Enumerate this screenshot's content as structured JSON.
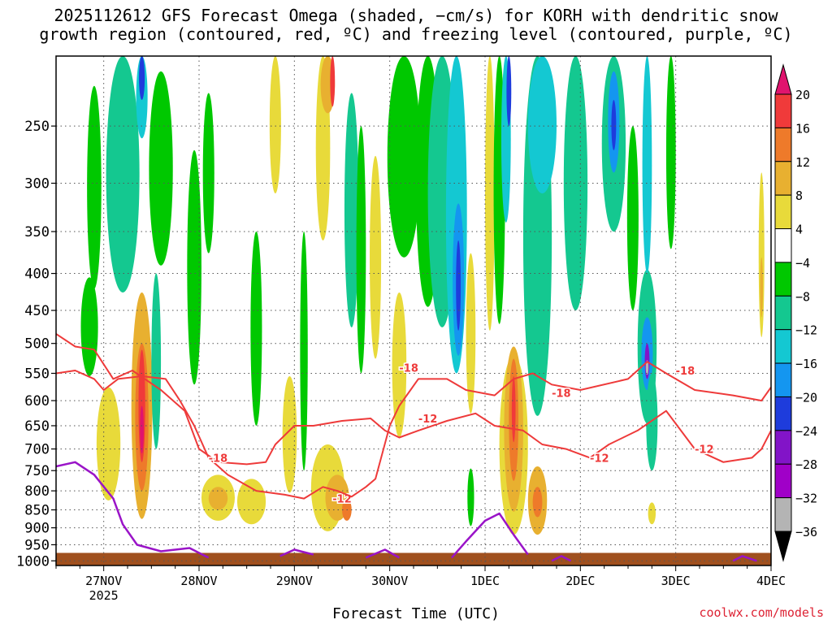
{
  "title_line1": "2025112612 GFS Forecast Omega (shaded, −cm/s) for KORH with dendritic snow",
  "title_line2": "growth region (contoured, red, ºC) and freezing level (contoured, purple, ºC)",
  "xlabel": "Forecast Time (UTC)",
  "credit": "coolwx.com/models",
  "chart_data": {
    "type": "heatmap",
    "title": "2025112612 GFS Forecast Omega (shaded, −cm/s) for KORH with dendritic snow growth region (contoured, red, ºC) and freezing level (contoured, purple, ºC)",
    "xlabel": "Forecast Time (UTC)",
    "ylabel": "",
    "x_ticks": [
      {
        "label": "27NOV",
        "sub": "2025",
        "day": 1
      },
      {
        "label": "28NOV",
        "day": 2
      },
      {
        "label": "29NOV",
        "day": 3
      },
      {
        "label": "30NOV",
        "day": 4
      },
      {
        "label": "1DEC",
        "day": 5
      },
      {
        "label": "2DEC",
        "day": 6
      },
      {
        "label": "3DEC",
        "day": 7
      },
      {
        "label": "4DEC",
        "day": 8
      }
    ],
    "xlim_days": [
      0.5,
      8
    ],
    "y_ticks": [
      250,
      300,
      350,
      400,
      450,
      500,
      550,
      600,
      650,
      700,
      750,
      800,
      850,
      900,
      950,
      1000
    ],
    "ylim_hPa": [
      200,
      1015
    ],
    "y_scale": "log (pressure)",
    "grid": true,
    "colorbar": {
      "labels": [
        "20",
        "16",
        "12",
        "8",
        "4",
        "−4",
        "−8",
        "−12",
        "−16",
        "−20",
        "−24",
        "−28",
        "−32",
        "−36"
      ],
      "colors": [
        "#e0146e",
        "#f03a3a",
        "#ee7a2a",
        "#e8b030",
        "#e8da3a",
        "#ffffff",
        "#00c800",
        "#14c890",
        "#14c8d2",
        "#1496f0",
        "#1e3cdc",
        "#8214c8",
        "#a000c8",
        "#b4b4b4",
        "#000000"
      ]
    },
    "omega_cells": [
      {
        "x": 0.85,
        "p": 480,
        "w": 0.18,
        "dp": 150,
        "v": -5
      },
      {
        "x": 0.9,
        "p": 320,
        "w": 0.15,
        "dp": 200,
        "v": -6
      },
      {
        "x": 1.2,
        "p": 300,
        "w": 0.35,
        "dp": 250,
        "v": -8
      },
      {
        "x": 1.4,
        "p": 230,
        "w": 0.12,
        "dp": 60,
        "v": -14
      },
      {
        "x": 1.4,
        "p": 210,
        "w": 0.06,
        "dp": 40,
        "v": -22
      },
      {
        "x": 1.6,
        "p": 300,
        "w": 0.25,
        "dp": 180,
        "v": -6
      },
      {
        "x": 1.05,
        "p": 700,
        "w": 0.25,
        "dp": 250,
        "v": 5
      },
      {
        "x": 1.4,
        "p": 650,
        "w": 0.22,
        "dp": 450,
        "v": 8
      },
      {
        "x": 1.4,
        "p": 650,
        "w": 0.14,
        "dp": 300,
        "v": 12
      },
      {
        "x": 1.4,
        "p": 620,
        "w": 0.07,
        "dp": 220,
        "v": 17
      },
      {
        "x": 1.4,
        "p": 660,
        "w": 0.04,
        "dp": 100,
        "v": 21
      },
      {
        "x": 1.55,
        "p": 550,
        "w": 0.1,
        "dp": 300,
        "v": -10
      },
      {
        "x": 1.95,
        "p": 420,
        "w": 0.15,
        "dp": 300,
        "v": -5
      },
      {
        "x": 2.1,
        "p": 300,
        "w": 0.12,
        "dp": 150,
        "v": -5
      },
      {
        "x": 2.2,
        "p": 820,
        "w": 0.35,
        "dp": 120,
        "v": 5
      },
      {
        "x": 2.2,
        "p": 820,
        "w": 0.2,
        "dp": 60,
        "v": 9
      },
      {
        "x": 2.6,
        "p": 500,
        "w": 0.12,
        "dp": 300,
        "v": -5
      },
      {
        "x": 2.55,
        "p": 830,
        "w": 0.3,
        "dp": 120,
        "v": 6
      },
      {
        "x": 2.8,
        "p": 250,
        "w": 0.12,
        "dp": 120,
        "v": 5
      },
      {
        "x": 2.95,
        "p": 680,
        "w": 0.15,
        "dp": 250,
        "v": 6
      },
      {
        "x": 3.1,
        "p": 550,
        "w": 0.08,
        "dp": 400,
        "v": -6
      },
      {
        "x": 3.3,
        "p": 260,
        "w": 0.15,
        "dp": 200,
        "v": 5
      },
      {
        "x": 3.35,
        "p": 210,
        "w": 0.15,
        "dp": 60,
        "v": 9
      },
      {
        "x": 3.4,
        "p": 210,
        "w": 0.05,
        "dp": 50,
        "v": 16
      },
      {
        "x": 3.35,
        "p": 800,
        "w": 0.35,
        "dp": 220,
        "v": 6
      },
      {
        "x": 3.45,
        "p": 820,
        "w": 0.25,
        "dp": 120,
        "v": 9
      },
      {
        "x": 3.55,
        "p": 850,
        "w": 0.1,
        "dp": 60,
        "v": 13
      },
      {
        "x": 3.6,
        "p": 350,
        "w": 0.15,
        "dp": 250,
        "v": -8
      },
      {
        "x": 3.7,
        "p": 400,
        "w": 0.1,
        "dp": 300,
        "v": -5
      },
      {
        "x": 3.85,
        "p": 400,
        "w": 0.12,
        "dp": 250,
        "v": 5
      },
      {
        "x": 4.15,
        "p": 280,
        "w": 0.35,
        "dp": 200,
        "v": -7
      },
      {
        "x": 4.1,
        "p": 550,
        "w": 0.15,
        "dp": 250,
        "v": 5
      },
      {
        "x": 4.4,
        "p": 320,
        "w": 0.25,
        "dp": 250,
        "v": -6
      },
      {
        "x": 4.55,
        "p": 300,
        "w": 0.3,
        "dp": 350,
        "v": -9
      },
      {
        "x": 4.7,
        "p": 350,
        "w": 0.22,
        "dp": 400,
        "v": -13
      },
      {
        "x": 4.72,
        "p": 420,
        "w": 0.12,
        "dp": 200,
        "v": -17
      },
      {
        "x": 4.72,
        "p": 420,
        "w": 0.05,
        "dp": 120,
        "v": -22
      },
      {
        "x": 4.85,
        "p": 820,
        "w": 0.07,
        "dp": 150,
        "v": -7
      },
      {
        "x": 4.85,
        "p": 500,
        "w": 0.1,
        "dp": 250,
        "v": 5
      },
      {
        "x": 5.05,
        "p": 330,
        "w": 0.1,
        "dp": 300,
        "v": 5
      },
      {
        "x": 5.15,
        "p": 320,
        "w": 0.12,
        "dp": 300,
        "v": -6
      },
      {
        "x": 5.22,
        "p": 240,
        "w": 0.1,
        "dp": 200,
        "v": -14
      },
      {
        "x": 5.25,
        "p": 210,
        "w": 0.05,
        "dp": 80,
        "v": -22
      },
      {
        "x": 5.3,
        "p": 720,
        "w": 0.3,
        "dp": 400,
        "v": 6
      },
      {
        "x": 5.3,
        "p": 680,
        "w": 0.2,
        "dp": 350,
        "v": 10
      },
      {
        "x": 5.3,
        "p": 650,
        "w": 0.1,
        "dp": 250,
        "v": 14
      },
      {
        "x": 5.3,
        "p": 620,
        "w": 0.04,
        "dp": 130,
        "v": 18
      },
      {
        "x": 5.55,
        "p": 830,
        "w": 0.2,
        "dp": 180,
        "v": 8
      },
      {
        "x": 5.55,
        "p": 830,
        "w": 0.1,
        "dp": 80,
        "v": 12
      },
      {
        "x": 5.55,
        "p": 380,
        "w": 0.3,
        "dp": 500,
        "v": -10
      },
      {
        "x": 5.6,
        "p": 250,
        "w": 0.3,
        "dp": 120,
        "v": -13
      },
      {
        "x": 5.95,
        "p": 300,
        "w": 0.25,
        "dp": 300,
        "v": -8
      },
      {
        "x": 6.35,
        "p": 250,
        "w": 0.25,
        "dp": 200,
        "v": -10
      },
      {
        "x": 6.35,
        "p": 250,
        "w": 0.12,
        "dp": 80,
        "v": -17
      },
      {
        "x": 6.35,
        "p": 250,
        "w": 0.05,
        "dp": 40,
        "v": -22
      },
      {
        "x": 6.55,
        "p": 350,
        "w": 0.12,
        "dp": 200,
        "v": -6
      },
      {
        "x": 6.7,
        "p": 520,
        "w": 0.2,
        "dp": 250,
        "v": -10
      },
      {
        "x": 6.7,
        "p": 520,
        "w": 0.12,
        "dp": 120,
        "v": -17
      },
      {
        "x": 6.7,
        "p": 530,
        "w": 0.05,
        "dp": 60,
        "v": -25
      },
      {
        "x": 6.7,
        "p": 540,
        "w": 0.03,
        "dp": 25,
        "v": -33
      },
      {
        "x": 6.7,
        "p": 300,
        "w": 0.1,
        "dp": 200,
        "v": -14
      },
      {
        "x": 6.75,
        "p": 650,
        "w": 0.12,
        "dp": 200,
        "v": -8
      },
      {
        "x": 6.95,
        "p": 270,
        "w": 0.1,
        "dp": 200,
        "v": -6
      },
      {
        "x": 6.75,
        "p": 860,
        "w": 0.08,
        "dp": 60,
        "v": 6
      },
      {
        "x": 7.9,
        "p": 390,
        "w": 0.06,
        "dp": 200,
        "v": 5
      },
      {
        "x": 7.9,
        "p": 420,
        "w": 0.03,
        "dp": 80,
        "v": 9
      }
    ],
    "dgz_contours": [
      {
        "label": "-12",
        "points": [
          [
            0.5,
            485
          ],
          [
            0.7,
            505
          ],
          [
            0.9,
            510
          ],
          [
            1.1,
            560
          ],
          [
            1.3,
            545
          ],
          [
            1.6,
            580
          ],
          [
            1.85,
            620
          ],
          [
            2.0,
            700
          ],
          [
            2.2,
            730
          ],
          [
            2.5,
            735
          ],
          [
            2.7,
            730
          ],
          [
            2.8,
            690
          ],
          [
            3.0,
            650
          ],
          [
            3.2,
            650
          ],
          [
            3.5,
            640
          ],
          [
            3.8,
            635
          ],
          [
            3.95,
            660
          ],
          [
            4.1,
            675
          ],
          [
            4.3,
            660
          ],
          [
            4.6,
            640
          ],
          [
            4.9,
            625
          ],
          [
            5.1,
            650
          ],
          [
            5.4,
            660
          ],
          [
            5.6,
            690
          ],
          [
            5.85,
            700
          ],
          [
            6.1,
            720
          ],
          [
            6.3,
            690
          ],
          [
            6.6,
            660
          ],
          [
            6.9,
            620
          ],
          [
            7.2,
            700
          ],
          [
            7.5,
            730
          ],
          [
            7.8,
            720
          ],
          [
            7.9,
            700
          ],
          [
            8.0,
            660
          ]
        ],
        "label_at": [
          [
            4.4,
            635
          ],
          [
            6.2,
            720
          ],
          [
            7.3,
            700
          ],
          [
            3.5,
            820
          ]
        ]
      },
      {
        "label": "-18",
        "points": [
          [
            0.5,
            550
          ],
          [
            0.7,
            545
          ],
          [
            0.9,
            560
          ],
          [
            1.0,
            580
          ],
          [
            1.15,
            560
          ],
          [
            1.4,
            555
          ],
          [
            1.65,
            560
          ],
          [
            1.8,
            600
          ],
          [
            1.95,
            650
          ],
          [
            2.1,
            720
          ],
          [
            2.3,
            760
          ],
          [
            2.6,
            800
          ],
          [
            2.9,
            810
          ],
          [
            3.1,
            820
          ],
          [
            3.3,
            790
          ],
          [
            3.45,
            800
          ],
          [
            3.6,
            815
          ],
          [
            3.75,
            790
          ],
          [
            3.85,
            770
          ],
          [
            4.0,
            650
          ],
          [
            4.1,
            610
          ],
          [
            4.3,
            560
          ],
          [
            4.6,
            560
          ],
          [
            4.8,
            580
          ],
          [
            5.1,
            590
          ],
          [
            5.3,
            560
          ],
          [
            5.5,
            550
          ],
          [
            5.7,
            570
          ],
          [
            6.0,
            580
          ],
          [
            6.5,
            560
          ],
          [
            6.7,
            530
          ],
          [
            6.9,
            550
          ],
          [
            7.2,
            580
          ],
          [
            7.6,
            590
          ],
          [
            7.9,
            600
          ],
          [
            8.0,
            575
          ]
        ],
        "label_at": [
          [
            4.2,
            540
          ],
          [
            5.8,
            585
          ],
          [
            7.1,
            545
          ],
          [
            2.2,
            720
          ]
        ]
      }
    ],
    "freezing_contours": [
      {
        "label": "0",
        "points": [
          [
            0.5,
            740
          ],
          [
            0.7,
            730
          ],
          [
            0.9,
            760
          ],
          [
            1.1,
            820
          ],
          [
            1.2,
            890
          ],
          [
            1.35,
            950
          ],
          [
            1.6,
            970
          ],
          [
            1.9,
            960
          ],
          [
            2.1,
            990
          ]
        ]
      },
      {
        "label": "0",
        "points": [
          [
            2.85,
            985
          ],
          [
            3.0,
            965
          ],
          [
            3.2,
            980
          ]
        ]
      },
      {
        "label": "0",
        "points": [
          [
            3.75,
            990
          ],
          [
            3.95,
            965
          ],
          [
            4.1,
            990
          ]
        ]
      },
      {
        "label": "0",
        "points": [
          [
            4.65,
            990
          ],
          [
            4.8,
            940
          ],
          [
            5.0,
            880
          ],
          [
            5.15,
            860
          ],
          [
            5.3,
            920
          ],
          [
            5.45,
            980
          ]
        ]
      },
      {
        "label": "0",
        "points": [
          [
            5.7,
            1000
          ],
          [
            5.8,
            985
          ],
          [
            5.9,
            1000
          ]
        ]
      },
      {
        "label": "0",
        "points": [
          [
            7.6,
            1000
          ],
          [
            7.7,
            985
          ],
          [
            7.85,
            1000
          ]
        ]
      }
    ],
    "terrain_surface_hPa": 975
  }
}
